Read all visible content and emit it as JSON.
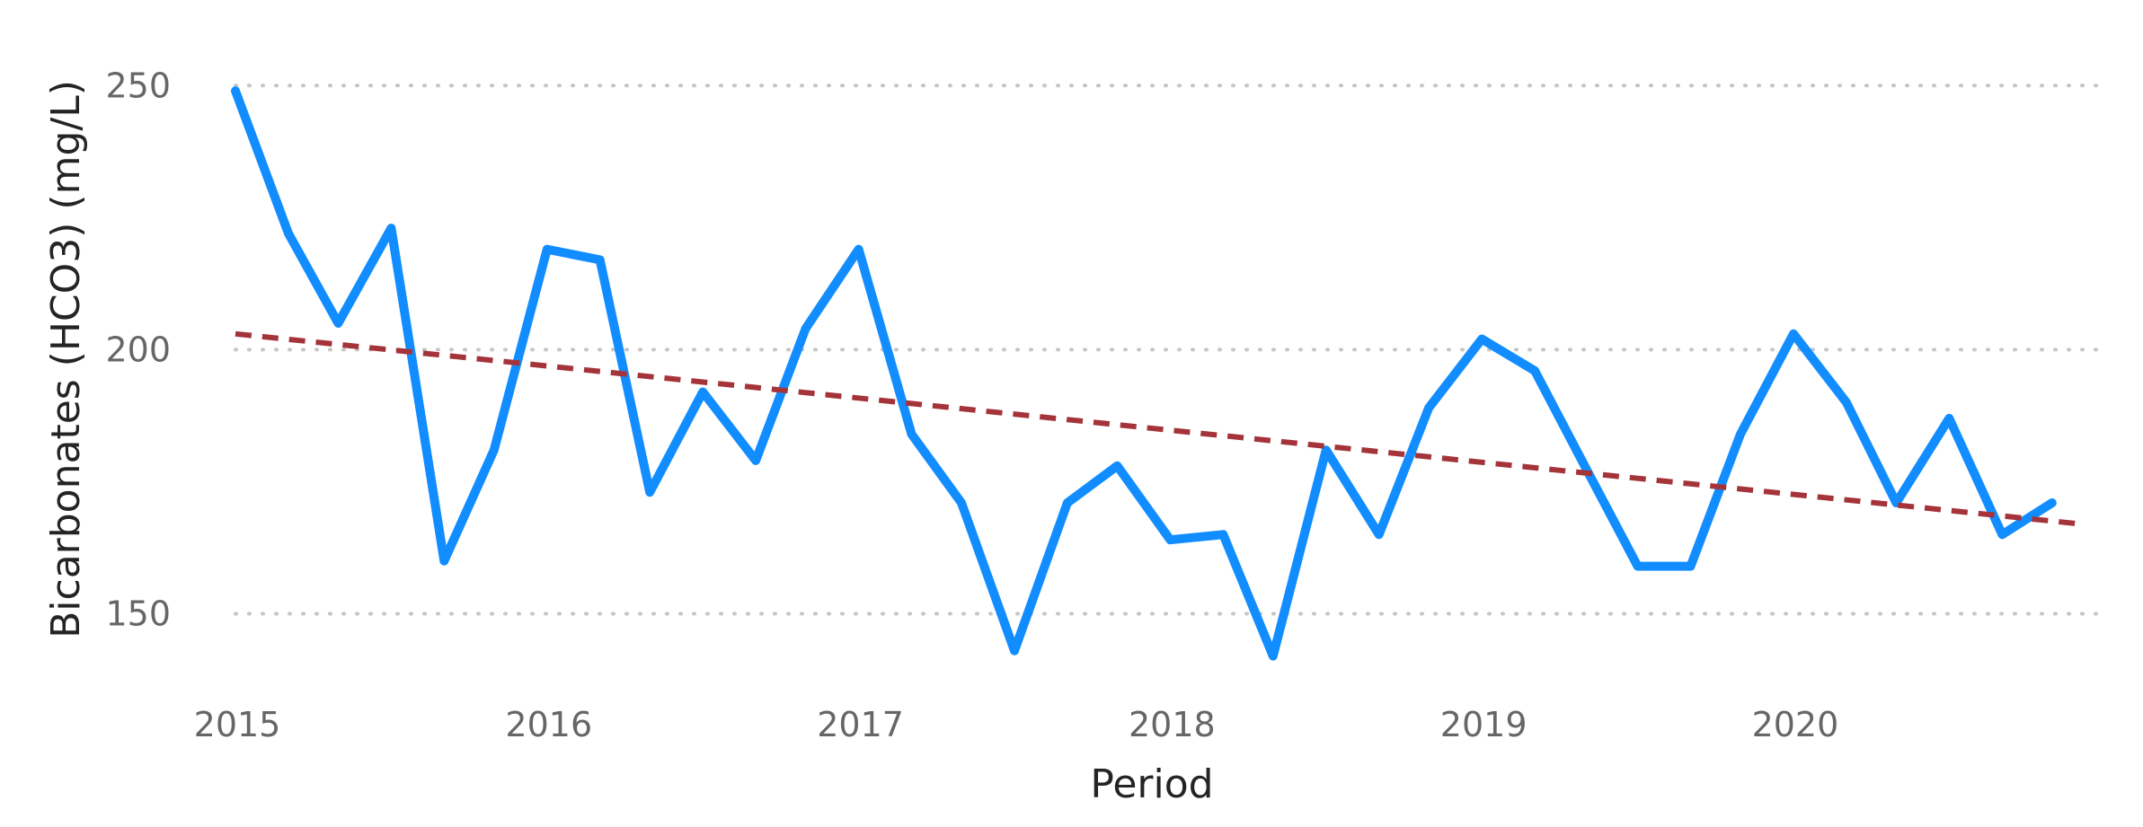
{
  "chart_data": {
    "type": "line",
    "title": "",
    "xlabel": "Period",
    "ylabel": "Bicarbonates (HCO3) (mg/L)",
    "xlim": [
      2015.0,
      2020.92
    ],
    "ylim": [
      137,
      256
    ],
    "y_ticks": [
      150,
      200,
      250
    ],
    "x_ticks": [
      2015,
      2016,
      2017,
      2018,
      2019,
      2020
    ],
    "x_tick_labels": [
      "2015",
      "2016",
      "2017",
      "2018",
      "2019",
      "2020"
    ],
    "y_tick_labels": [
      "150",
      "200",
      "250"
    ],
    "grid": "horizontal dotted",
    "legend": "none",
    "series": [
      {
        "type": "line",
        "color": "#118DFF",
        "x": [
          2015.0,
          2015.17,
          2015.33,
          2015.5,
          2015.67,
          2015.83,
          2016.0,
          2016.17,
          2016.33,
          2016.5,
          2016.67,
          2016.83,
          2017.0,
          2017.17,
          2017.33,
          2017.5,
          2017.67,
          2017.83,
          2018.0,
          2018.17,
          2018.33,
          2018.5,
          2018.67,
          2018.83,
          2019.0,
          2019.17,
          2019.33,
          2019.5,
          2019.67,
          2019.83,
          2020.0,
          2020.17,
          2020.33,
          2020.5,
          2020.67,
          2020.83
        ],
        "values": [
          249,
          222,
          205,
          223,
          160,
          181,
          219,
          217,
          173,
          192,
          179,
          204,
          219,
          184,
          171,
          143,
          171,
          178,
          164,
          165,
          142,
          181,
          165,
          189,
          202,
          196,
          178,
          159,
          159,
          184,
          203,
          190,
          171,
          187,
          165,
          171
        ]
      },
      {
        "type": "trend",
        "style": "dashed",
        "color": "#A4343A",
        "x": [
          2015.0,
          2020.92
        ],
        "values": [
          203,
          167
        ]
      }
    ]
  }
}
